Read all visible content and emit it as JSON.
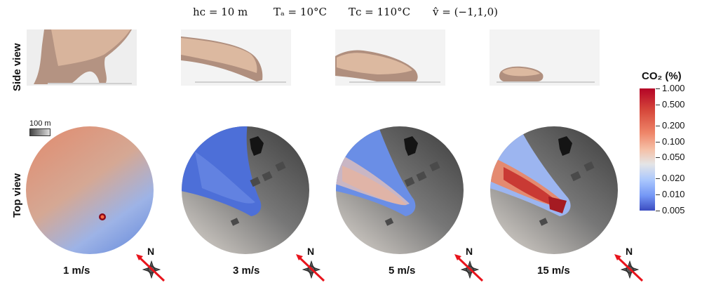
{
  "header": {
    "hc": "hᴄ = 10 m",
    "ta": "Tₐ = 10°C",
    "tc": "Tᴄ = 110°C",
    "v": "v̂ = (−1,1,0)"
  },
  "row_labels": {
    "side": "Side view",
    "top": "Top view"
  },
  "scale_bar": {
    "label": "100 m"
  },
  "colorbar": {
    "title": "CO₂ (%)",
    "scale": "log",
    "labels": [
      "1.000",
      "0.500",
      "0.200",
      "0.100",
      "0.050",
      "0.020",
      "0.010",
      "0.005"
    ]
  },
  "panels": [
    {
      "speed": "1 m/s"
    },
    {
      "speed": "3 m/s"
    },
    {
      "speed": "5 m/s"
    },
    {
      "speed": "15 m/s"
    }
  ],
  "compass": {
    "north_label": "N",
    "wind_arrow_color": "#e8141c"
  },
  "colors": {
    "plume": "#d9b49a",
    "high_co2": "#b40426",
    "low_co2": "#3b4cc0",
    "ground": "#8a8a8a"
  }
}
